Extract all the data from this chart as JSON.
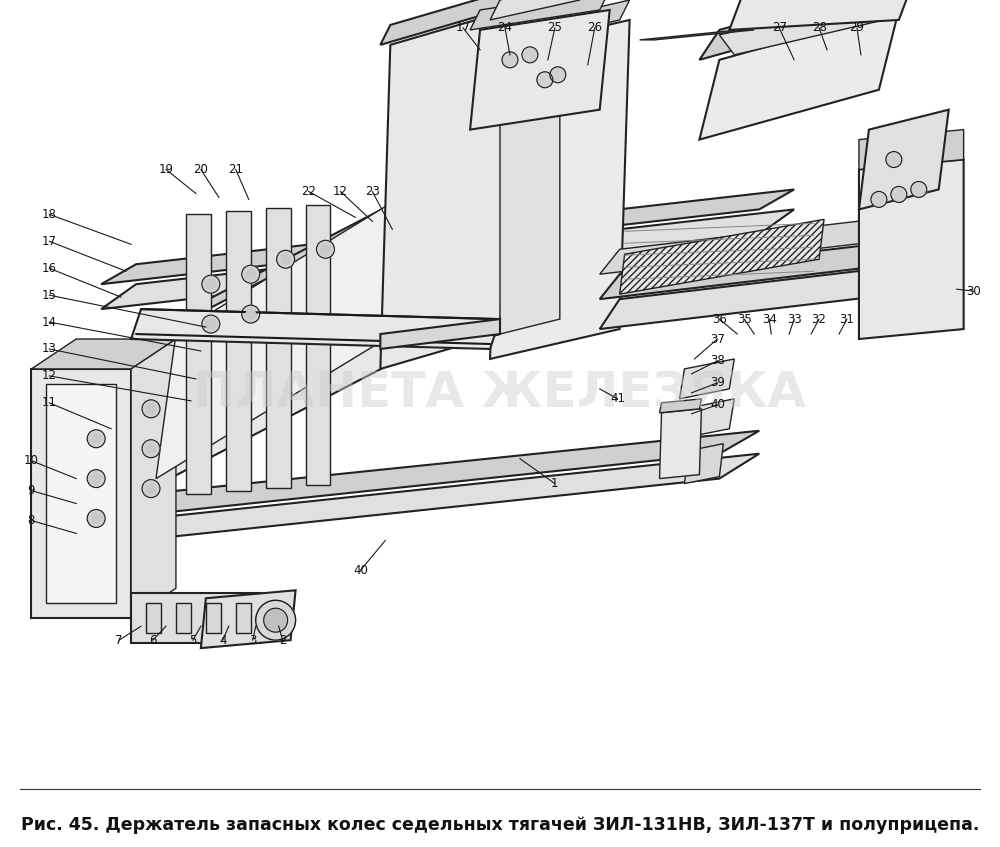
{
  "caption": "Рис. 45. Держатель запасных колес седельных тягачей ЗИЛ-131НВ, ЗИЛ-137Т и полуприцепа.",
  "caption_fontsize": 12.5,
  "bg_color": "#ffffff",
  "fig_width": 10.0,
  "fig_height": 8.47,
  "watermark_text": "ПЛАНЕТА ЖЕЛЕЗЯКА",
  "watermark_color": "#cccccc",
  "watermark_fontsize": 36,
  "watermark_alpha": 0.45,
  "dark": "#1a1a1a",
  "line_color": "#222222",
  "fill_light": "#f0f0f0",
  "fill_mid": "#e0e0e0",
  "fill_dark": "#d0d0d0",
  "fill_darker": "#c0c0c0"
}
